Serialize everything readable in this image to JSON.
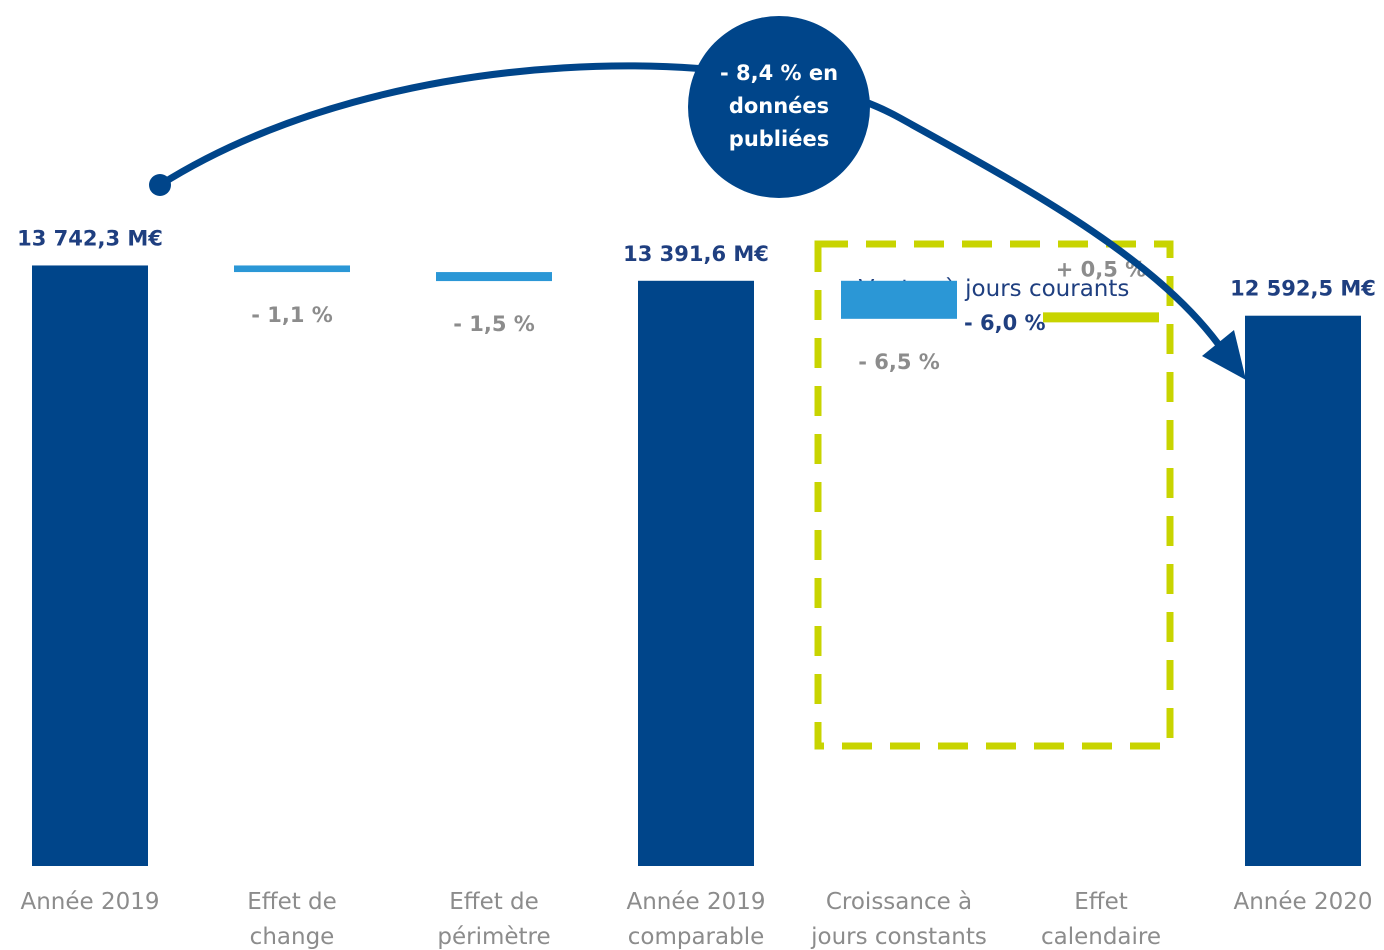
{
  "colors": {
    "total": "#00458a",
    "negative": "#2b97d6",
    "positive": "#c8d400",
    "arrow": "#00458a",
    "label_dark": "#1f3f80",
    "label_grey": "#8c8c8c"
  },
  "callout": {
    "lines": [
      "- 8,4 % en",
      "données",
      "publiées"
    ]
  },
  "highlight_box": {
    "title": "Ventes à jours courants",
    "delta_label": "- 6,0 %"
  },
  "chart_data": {
    "type": "bar",
    "subtype": "waterfall",
    "unit": "M€",
    "categories": [
      [
        "Année 2019"
      ],
      [
        "Effet de",
        "change"
      ],
      [
        "Effet de",
        "périmètre"
      ],
      [
        "Année 2019",
        "comparable"
      ],
      [
        "Croissance à",
        "jours constants"
      ],
      [
        "Effet",
        "calendaire"
      ],
      [
        "Année 2020"
      ]
    ],
    "steps": [
      {
        "kind": "total",
        "value": 13742.3,
        "label": "13 742,3 M€"
      },
      {
        "kind": "delta",
        "pct": -1.1,
        "label": "- 1,1 %"
      },
      {
        "kind": "delta",
        "pct": -1.5,
        "label": "- 1,5 %"
      },
      {
        "kind": "total",
        "value": 13391.6,
        "label": "13 391,6 M€"
      },
      {
        "kind": "delta",
        "pct": -6.5,
        "label": "- 6,5 %"
      },
      {
        "kind": "delta",
        "pct": 0.5,
        "label": "+ 0,5 %"
      },
      {
        "kind": "total",
        "value": 12592.5,
        "label": "12 592,5 M€"
      }
    ],
    "published_change_label": "- 8,4 % en données publiées"
  }
}
